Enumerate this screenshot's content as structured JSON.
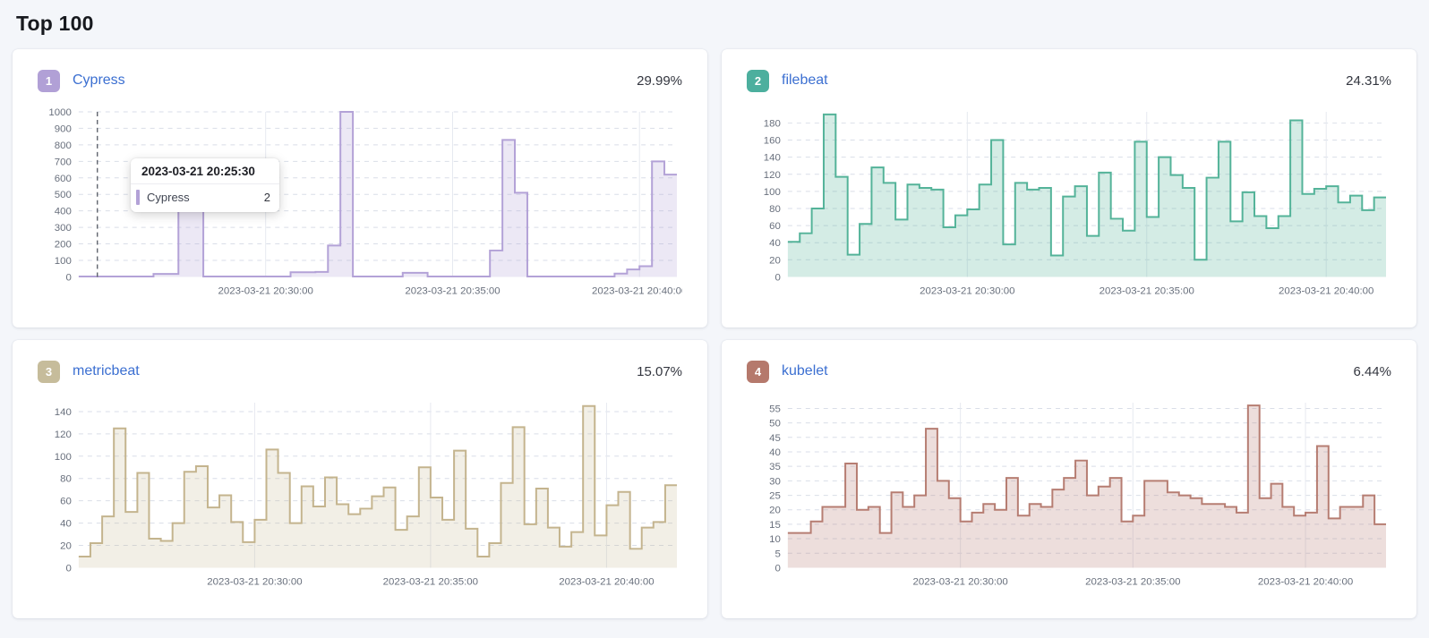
{
  "page": {
    "title": "Top 100"
  },
  "tooltip": {
    "header": "2023-03-21 20:25:30",
    "series_label": "Cypress",
    "series_value": "2",
    "marker_color": "#b3a2d7"
  },
  "panels": [
    {
      "rank": "1",
      "title": "Cypress",
      "percent": "29.99%",
      "badge_color": "#b1a0d6",
      "line_color": "#b3a2d7",
      "fill_color": "rgba(179,162,215,0.25)"
    },
    {
      "rank": "2",
      "title": "filebeat",
      "percent": "24.31%",
      "badge_color": "#4caf9e",
      "line_color": "#54b399",
      "fill_color": "rgba(84,179,153,0.25)"
    },
    {
      "rank": "3",
      "title": "metricbeat",
      "percent": "15.07%",
      "badge_color": "#c6bc9b",
      "line_color": "#c4b48e",
      "fill_color": "rgba(196,180,142,0.22)"
    },
    {
      "rank": "4",
      "title": "kubelet",
      "percent": "6.44%",
      "badge_color": "#b5796c",
      "line_color": "#b67d72",
      "fill_color": "rgba(182,125,114,0.25)"
    }
  ],
  "axis_colors": {
    "tick_text": "#69707d",
    "h_grid": "#d9dee8",
    "v_grid": "#e6e9f0",
    "cursor": "#60656e"
  },
  "chart_data": [
    {
      "type": "area",
      "title": "Cypress",
      "x_start": "2023-03-21 20:25:00",
      "x_interval_seconds": 20,
      "x_tick_labels": [
        "2023-03-21 20:30:00",
        "2023-03-21 20:35:00",
        "2023-03-21 20:40:00"
      ],
      "x_gridline_indices": [
        15,
        30,
        45
      ],
      "y_ticks": [
        1000,
        900,
        800,
        700,
        600,
        500,
        400,
        300,
        200,
        100,
        0
      ],
      "ylim": [
        0,
        1000
      ],
      "ymax_render": 1000,
      "cursor_index": 1.5,
      "values": [
        2,
        2,
        2,
        2,
        2,
        2,
        18,
        18,
        480,
        480,
        2,
        2,
        2,
        2,
        2,
        2,
        2,
        28,
        28,
        30,
        190,
        1000,
        2,
        2,
        2,
        2,
        25,
        25,
        2,
        2,
        2,
        2,
        2,
        160,
        830,
        510,
        2,
        2,
        2,
        2,
        2,
        2,
        2,
        20,
        45,
        65,
        700,
        620
      ]
    },
    {
      "type": "area",
      "title": "filebeat",
      "x_start": "2023-03-21 20:25:00",
      "x_interval_seconds": 20,
      "x_tick_labels": [
        "2023-03-21 20:30:00",
        "2023-03-21 20:35:00",
        "2023-03-21 20:40:00"
      ],
      "x_gridline_indices": [
        15,
        30,
        45
      ],
      "y_ticks": [
        180,
        160,
        140,
        120,
        100,
        80,
        60,
        40,
        20,
        0
      ],
      "ylim": [
        0,
        193
      ],
      "ymax_render": 193,
      "cursor_index": null,
      "values": [
        41,
        51,
        80,
        190,
        117,
        26,
        62,
        128,
        110,
        67,
        108,
        104,
        102,
        58,
        72,
        79,
        108,
        160,
        38,
        110,
        102,
        104,
        25,
        94,
        106,
        48,
        122,
        68,
        54,
        158,
        70,
        140,
        119,
        104,
        20,
        116,
        158,
        65,
        99,
        71,
        57,
        71,
        183,
        97,
        103,
        106,
        87,
        95,
        78,
        93
      ]
    },
    {
      "type": "area",
      "title": "metricbeat",
      "x_start": "2023-03-21 20:25:00",
      "x_interval_seconds": 20,
      "x_tick_labels": [
        "2023-03-21 20:30:00",
        "2023-03-21 20:35:00",
        "2023-03-21 20:40:00"
      ],
      "x_gridline_indices": [
        15,
        30,
        45
      ],
      "y_ticks": [
        140,
        120,
        100,
        80,
        60,
        40,
        20,
        0
      ],
      "ylim": [
        0,
        148
      ],
      "ymax_render": 148,
      "cursor_index": null,
      "values": [
        10,
        22,
        46,
        125,
        50,
        85,
        26,
        24,
        40,
        86,
        91,
        54,
        65,
        41,
        23,
        43,
        106,
        85,
        40,
        73,
        55,
        81,
        57,
        48,
        53,
        64,
        72,
        34,
        46,
        90,
        63,
        43,
        105,
        35,
        10,
        22,
        76,
        126,
        39,
        71,
        36,
        19,
        32,
        145,
        29,
        56,
        68,
        17,
        36,
        41,
        74
      ]
    },
    {
      "type": "area",
      "title": "kubelet",
      "x_start": "2023-03-21 20:25:00",
      "x_interval_seconds": 20,
      "x_tick_labels": [
        "2023-03-21 20:30:00",
        "2023-03-21 20:35:00",
        "2023-03-21 20:40:00"
      ],
      "x_gridline_indices": [
        15,
        30,
        45
      ],
      "y_ticks": [
        55,
        50,
        45,
        40,
        35,
        30,
        25,
        20,
        15,
        10,
        5,
        0
      ],
      "ylim": [
        0,
        57
      ],
      "ymax_render": 57,
      "cursor_index": null,
      "values": [
        12,
        12,
        16,
        21,
        21,
        36,
        20,
        21,
        12,
        26,
        21,
        25,
        48,
        30,
        24,
        16,
        19,
        22,
        20,
        31,
        18,
        22,
        21,
        27,
        31,
        37,
        25,
        28,
        31,
        16,
        18,
        30,
        30,
        26,
        25,
        24,
        22,
        22,
        21,
        19,
        56,
        24,
        29,
        21,
        18,
        19,
        42,
        17,
        21,
        21,
        25,
        15
      ]
    }
  ]
}
